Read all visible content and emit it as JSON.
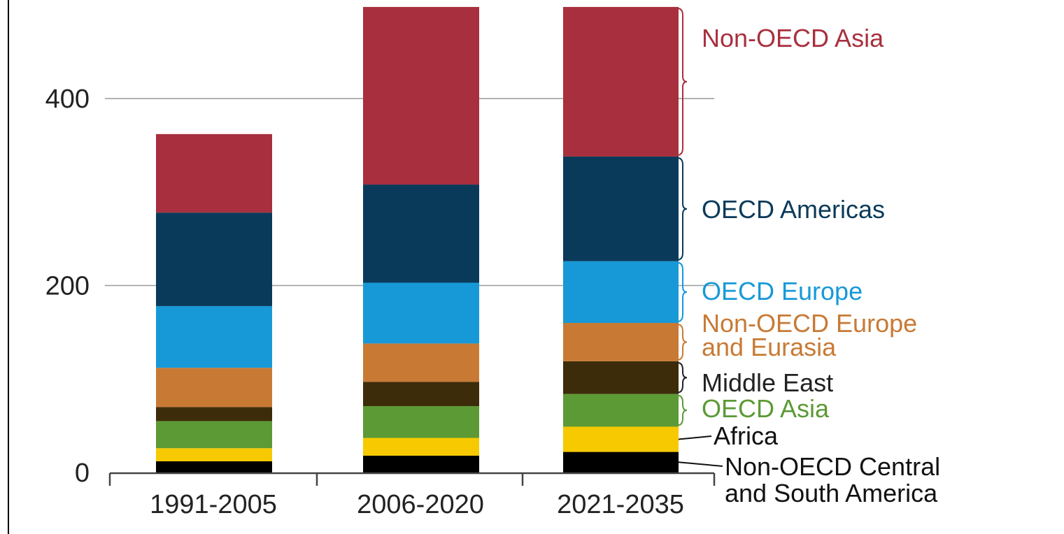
{
  "chart_data": {
    "type": "bar",
    "stacked": true,
    "categories": [
      "1991-2005",
      "2006-2020",
      "2021-2035"
    ],
    "ylim": [
      0,
      480
    ],
    "yticks": [
      0,
      200,
      400
    ],
    "grid": true,
    "legend_placement": "right",
    "series": [
      {
        "name": "Non-OECD Central and South America",
        "color": "#000000",
        "values": [
          12,
          18,
          22
        ]
      },
      {
        "name": "Africa",
        "color": "#f7c900",
        "values": [
          14,
          19,
          27
        ]
      },
      {
        "name": "OECD Asia",
        "color": "#5c9a35",
        "values": [
          29,
          34,
          35
        ]
      },
      {
        "name": "Middle East",
        "color": "#3d2c0a",
        "values": [
          15,
          26,
          35
        ]
      },
      {
        "name": "Non-OECD Europe and Eurasia",
        "color": "#c87a35",
        "values": [
          42,
          41,
          41
        ]
      },
      {
        "name": "OECD Europe",
        "color": "#1799d8",
        "values": [
          66,
          65,
          66
        ]
      },
      {
        "name": "OECD Americas",
        "color": "#0a3a5a",
        "values": [
          100,
          105,
          112
        ]
      },
      {
        "name": "Non-OECD Asia",
        "color": "#a8303e",
        "values": [
          84,
          190,
          160
        ]
      }
    ],
    "legend_lines": [
      [
        "Non-OECD Asia"
      ],
      [
        "OECD Americas"
      ],
      [
        "OECD Europe"
      ],
      [
        "Non-OECD Europe",
        "and Eurasia"
      ],
      [
        "Middle East"
      ],
      [
        "OECD Asia"
      ],
      [
        "Africa"
      ],
      [
        "Non-OECD Central",
        "and South America"
      ]
    ]
  }
}
